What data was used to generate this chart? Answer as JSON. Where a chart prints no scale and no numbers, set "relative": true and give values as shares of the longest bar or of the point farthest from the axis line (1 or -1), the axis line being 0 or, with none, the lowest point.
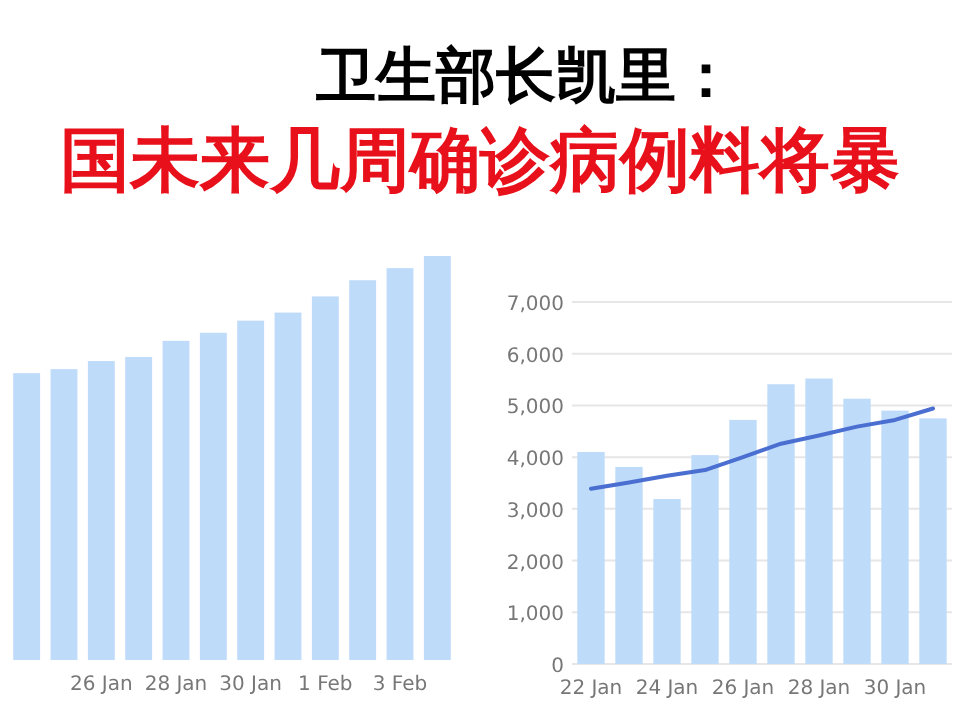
{
  "chart_data": [
    {
      "type": "bar",
      "title": "卫生部长凯里：",
      "subtitle": "国未来几周确诊病例料将暴",
      "relative": true,
      "categories": [
        null,
        null,
        "26 Jan",
        null,
        "28 Jan",
        null,
        "30 Jan",
        null,
        "1 Feb",
        null,
        "3 Feb",
        null
      ],
      "series": [
        {
          "color": "#bfdbfa",
          "values": [
            0.71,
            0.72,
            0.74,
            0.75,
            0.79,
            0.81,
            0.84,
            0.86,
            0.9,
            0.94,
            0.97,
            1
          ]
        }
      ]
    },
    {
      "type": "bar",
      "categories": [
        "22 Jan",
        null,
        "24 Jan",
        null,
        "26 Jan",
        null,
        "28 Jan",
        null,
        "30 Jan",
        null
      ],
      "ylim": [
        0,
        7000
      ],
      "grid": "y",
      "yticks": [
        0,
        {
          "value": 1000,
          "label": "1,000"
        },
        {
          "value": 2000,
          "label": "2,000"
        },
        {
          "value": 3000,
          "label": "3,000"
        },
        {
          "value": 4000,
          "label": "4,000"
        },
        {
          "value": 5000,
          "label": "5,000"
        },
        {
          "value": 6000,
          "label": "6,000"
        },
        {
          "value": 7000,
          "label": "7,000"
        }
      ],
      "series": [
        {
          "type": "bar",
          "color": "#bfdbfa",
          "values": [
            4100,
            3810,
            3190,
            4040,
            4720,
            5410,
            5520,
            5130,
            4900,
            4750
          ]
        },
        {
          "type": "line",
          "color": "#4a6fd1",
          "values": [
            3390,
            3510,
            3640,
            3750,
            4000,
            4260,
            4420,
            4590,
            4720,
            4940
          ]
        }
      ]
    }
  ]
}
